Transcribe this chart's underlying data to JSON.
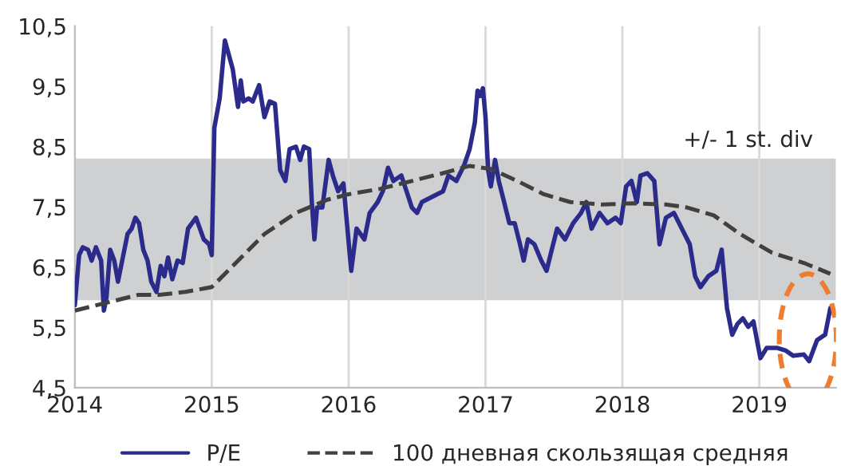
{
  "chart_data": {
    "type": "line",
    "xlim": [
      2014,
      2019.56
    ],
    "xticks": [
      2014,
      2015,
      2016,
      2017,
      2018,
      2019
    ],
    "ylim": [
      4.5,
      10.5
    ],
    "yticks": [
      {
        "value": 4.5,
        "label": "4,5"
      },
      {
        "value": 5.5,
        "label": "5,5"
      },
      {
        "value": 6.5,
        "label": "6,5"
      },
      {
        "value": 7.5,
        "label": "7,5"
      },
      {
        "value": 8.5,
        "label": "8,5"
      },
      {
        "value": 9.5,
        "label": "9,5"
      },
      {
        "value": 10.5,
        "label": "10,5"
      }
    ],
    "grid": "x",
    "legend": "bottom",
    "bands": [
      {
        "axis": "y",
        "from": 5.95,
        "to": 8.3,
        "label": "+/- 1 st. div",
        "color": "#cfd0d2"
      }
    ],
    "series": [
      {
        "name": "P/E",
        "color": "#2b2b8c",
        "line_style": "solid",
        "x": [
          2014.0,
          2014.031,
          2014.058,
          2014.096,
          2014.123,
          2014.154,
          2014.192,
          2014.212,
          2014.231,
          2014.258,
          2014.288,
          2014.315,
          2014.346,
          2014.385,
          2014.415,
          2014.442,
          2014.469,
          2014.5,
          2014.531,
          2014.558,
          2014.596,
          2014.627,
          2014.654,
          2014.681,
          2014.712,
          2014.75,
          2014.788,
          2014.827,
          2014.885,
          2014.942,
          2014.981,
          2015.0,
          2015.019,
          2015.058,
          2015.096,
          2015.154,
          2015.192,
          2015.212,
          2015.231,
          2015.269,
          2015.3,
          2015.346,
          2015.385,
          2015.423,
          2015.462,
          2015.5,
          2015.538,
          2015.569,
          2015.615,
          2015.646,
          2015.673,
          2015.712,
          2015.731,
          2015.75,
          2015.769,
          2015.808,
          2015.854,
          2015.885,
          2015.923,
          2015.962,
          2015.981,
          2016.019,
          2016.058,
          2016.115,
          2016.154,
          2016.212,
          2016.25,
          2016.288,
          2016.327,
          2016.385,
          2016.423,
          2016.462,
          2016.5,
          2016.535,
          2016.612,
          2016.69,
          2016.729,
          2016.787,
          2016.845,
          2016.884,
          2016.922,
          2016.942,
          2016.961,
          2016.981,
          2017.0,
          2017.019,
          2017.039,
          2017.07,
          2017.097,
          2017.136,
          2017.174,
          2017.213,
          2017.252,
          2017.279,
          2017.31,
          2017.357,
          2017.407,
          2017.446,
          2017.484,
          2017.523,
          2017.581,
          2017.64,
          2017.698,
          2017.736,
          2017.775,
          2017.833,
          2017.891,
          2017.95,
          2017.988,
          2018.027,
          2018.066,
          2018.105,
          2018.132,
          2018.182,
          2018.233,
          2018.271,
          2018.318,
          2018.376,
          2018.434,
          2018.492,
          2018.531,
          2018.57,
          2018.628,
          2018.686,
          2018.725,
          2018.764,
          2018.802,
          2018.841,
          2018.88,
          2018.919,
          2018.957,
          2019.008,
          2019.054,
          2019.132,
          2019.19,
          2019.248,
          2019.326,
          2019.364,
          2019.422,
          2019.481,
          2019.519
        ],
        "values": [
          5.87,
          6.7,
          6.83,
          6.79,
          6.61,
          6.83,
          6.61,
          5.78,
          6.0,
          6.79,
          6.61,
          6.26,
          6.61,
          7.05,
          7.14,
          7.32,
          7.23,
          6.79,
          6.61,
          6.26,
          6.09,
          6.52,
          6.35,
          6.66,
          6.3,
          6.61,
          6.57,
          7.14,
          7.32,
          6.96,
          6.88,
          6.7,
          8.81,
          9.3,
          10.26,
          9.78,
          9.16,
          9.6,
          9.25,
          9.3,
          9.25,
          9.52,
          8.99,
          9.25,
          9.21,
          8.11,
          7.93,
          8.46,
          8.5,
          8.28,
          8.5,
          8.46,
          7.58,
          6.96,
          7.49,
          7.49,
          8.28,
          8.02,
          7.76,
          7.89,
          7.4,
          6.44,
          7.14,
          6.96,
          7.4,
          7.58,
          7.76,
          8.15,
          7.93,
          8.02,
          7.76,
          7.49,
          7.4,
          7.58,
          7.67,
          7.76,
          8.02,
          7.93,
          8.2,
          8.46,
          8.9,
          9.43,
          9.34,
          9.47,
          8.99,
          8.11,
          7.84,
          8.28,
          7.93,
          7.58,
          7.23,
          7.23,
          6.88,
          6.61,
          6.96,
          6.88,
          6.61,
          6.44,
          6.79,
          7.14,
          6.96,
          7.23,
          7.4,
          7.58,
          7.14,
          7.4,
          7.23,
          7.32,
          7.23,
          7.84,
          7.93,
          7.58,
          8.02,
          8.06,
          7.93,
          6.88,
          7.32,
          7.4,
          7.14,
          6.88,
          6.35,
          6.17,
          6.35,
          6.44,
          6.79,
          5.82,
          5.38,
          5.56,
          5.65,
          5.51,
          5.6,
          4.99,
          5.16,
          5.16,
          5.12,
          5.03,
          5.05,
          4.94,
          5.29,
          5.38,
          5.82
        ]
      },
      {
        "name": "100 дневная скользящая средняя",
        "color": "#404040",
        "line_style": "dashed",
        "x": [
          2014.0,
          2014.231,
          2014.462,
          2014.615,
          2014.808,
          2015.0,
          2015.154,
          2015.385,
          2015.615,
          2015.846,
          2016.0,
          2016.231,
          2016.462,
          2016.69,
          2016.884,
          2017.039,
          2017.233,
          2017.426,
          2017.62,
          2017.853,
          2018.085,
          2018.318,
          2018.473,
          2018.667,
          2018.86,
          2019.093,
          2019.326,
          2019.519
        ],
        "values": [
          5.78,
          5.91,
          6.04,
          6.04,
          6.09,
          6.17,
          6.52,
          7.05,
          7.4,
          7.62,
          7.71,
          7.8,
          7.93,
          8.06,
          8.18,
          8.13,
          7.93,
          7.71,
          7.58,
          7.54,
          7.56,
          7.54,
          7.49,
          7.36,
          7.05,
          6.74,
          6.57,
          6.39
        ]
      }
    ]
  }
}
